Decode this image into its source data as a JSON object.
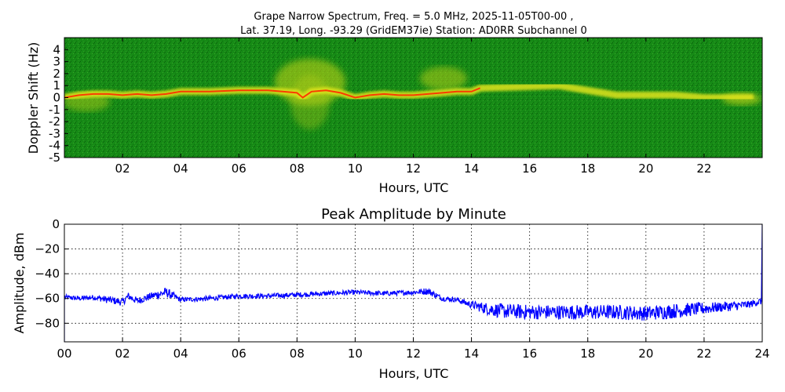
{
  "chart_data": [
    {
      "type": "heatmap",
      "title_line1": "Grape Narrow Spectrum, Freq. = 5.0 MHz, 2025-11-05T00-00 ,",
      "title_line2": "Lat.  37.19, Long. -93.29 (GridEM37ie) Station: AD0RR Subchannel 0",
      "xlabel": "Hours, UTC",
      "ylabel": "Doppler Shift (Hz)",
      "xlim": [
        0,
        24
      ],
      "ylim": [
        -5,
        5
      ],
      "xticks": [
        2,
        4,
        6,
        8,
        10,
        12,
        14,
        16,
        18,
        20,
        22
      ],
      "xtick_labels": [
        "02",
        "04",
        "06",
        "08",
        "10",
        "12",
        "14",
        "16",
        "18",
        "20",
        "22"
      ],
      "yticks": [
        4,
        3,
        2,
        1,
        0,
        -1,
        -2,
        -3,
        -4,
        -5
      ],
      "ytick_labels": [
        "4",
        "3",
        "2",
        "1",
        "0",
        "-1",
        "-2",
        "-3",
        "-4",
        "-5"
      ],
      "colors": {
        "background": "#1a8a1a",
        "signal_mid": "#d8e020",
        "signal_peak": "#ff2000"
      },
      "doppler_trace": {
        "hours": [
          0,
          0.5,
          1,
          1.5,
          2,
          2.5,
          3,
          3.5,
          4,
          5,
          6,
          7,
          7.5,
          8,
          8.2,
          8.5,
          9,
          9.5,
          10,
          10.5,
          11,
          11.5,
          12,
          12.5,
          13,
          13.5,
          14,
          14.3,
          17,
          19,
          21,
          22,
          23,
          23.7
        ],
        "hz": [
          0,
          0.2,
          0.3,
          0.3,
          0.2,
          0.3,
          0.2,
          0.3,
          0.5,
          0.5,
          0.6,
          0.6,
          0.5,
          0.4,
          0.0,
          0.5,
          0.6,
          0.4,
          0.0,
          0.2,
          0.3,
          0.2,
          0.2,
          0.3,
          0.4,
          0.5,
          0.5,
          0.8,
          1.0,
          0.2,
          0.2,
          0.0,
          0.0,
          0.0
        ]
      }
    },
    {
      "type": "line",
      "title": "Peak Amplitude by Minute",
      "xlabel": "Hours, UTC",
      "ylabel": "Amplitude, dBm",
      "xlim": [
        0,
        24
      ],
      "ylim": [
        -95,
        0
      ],
      "xticks": [
        0,
        2,
        4,
        6,
        8,
        10,
        12,
        14,
        16,
        18,
        20,
        22,
        24
      ],
      "xtick_labels": [
        "00",
        "02",
        "04",
        "06",
        "08",
        "10",
        "12",
        "14",
        "16",
        "18",
        "20",
        "22",
        "24"
      ],
      "yticks": [
        0,
        -20,
        -40,
        -60,
        -80
      ],
      "ytick_labels": [
        "0",
        "−20",
        "−40",
        "−60",
        "−80"
      ],
      "grid": true,
      "series": [
        {
          "name": "Peak Amplitude",
          "color": "#0000ff",
          "x": [
            0,
            0.5,
            1,
            1.5,
            2,
            2.2,
            2.5,
            3,
            3.5,
            4,
            5,
            6,
            7,
            8,
            9,
            10,
            11,
            12,
            12.5,
            13,
            13.5,
            14,
            14.5,
            15,
            16,
            17,
            18,
            19,
            20,
            21,
            22,
            22.5,
            23,
            23.5,
            24
          ],
          "y": [
            -59,
            -60,
            -59,
            -61,
            -63,
            -58,
            -62,
            -58,
            -55,
            -61,
            -60,
            -58,
            -58,
            -57,
            -56,
            -55,
            -56,
            -55,
            -54,
            -60,
            -61,
            -65,
            -68,
            -70,
            -71,
            -71,
            -71,
            -71,
            -72,
            -70,
            -68,
            -67,
            -66,
            -65,
            -62
          ],
          "noise": [
            2,
            2,
            2,
            3,
            3,
            3,
            3,
            3,
            4,
            2,
            2,
            2,
            2,
            2,
            2,
            2,
            2,
            2,
            3,
            2,
            2,
            3,
            5,
            6,
            6,
            6,
            6,
            6,
            6,
            6,
            5,
            4,
            4,
            3,
            3
          ]
        }
      ]
    }
  ]
}
